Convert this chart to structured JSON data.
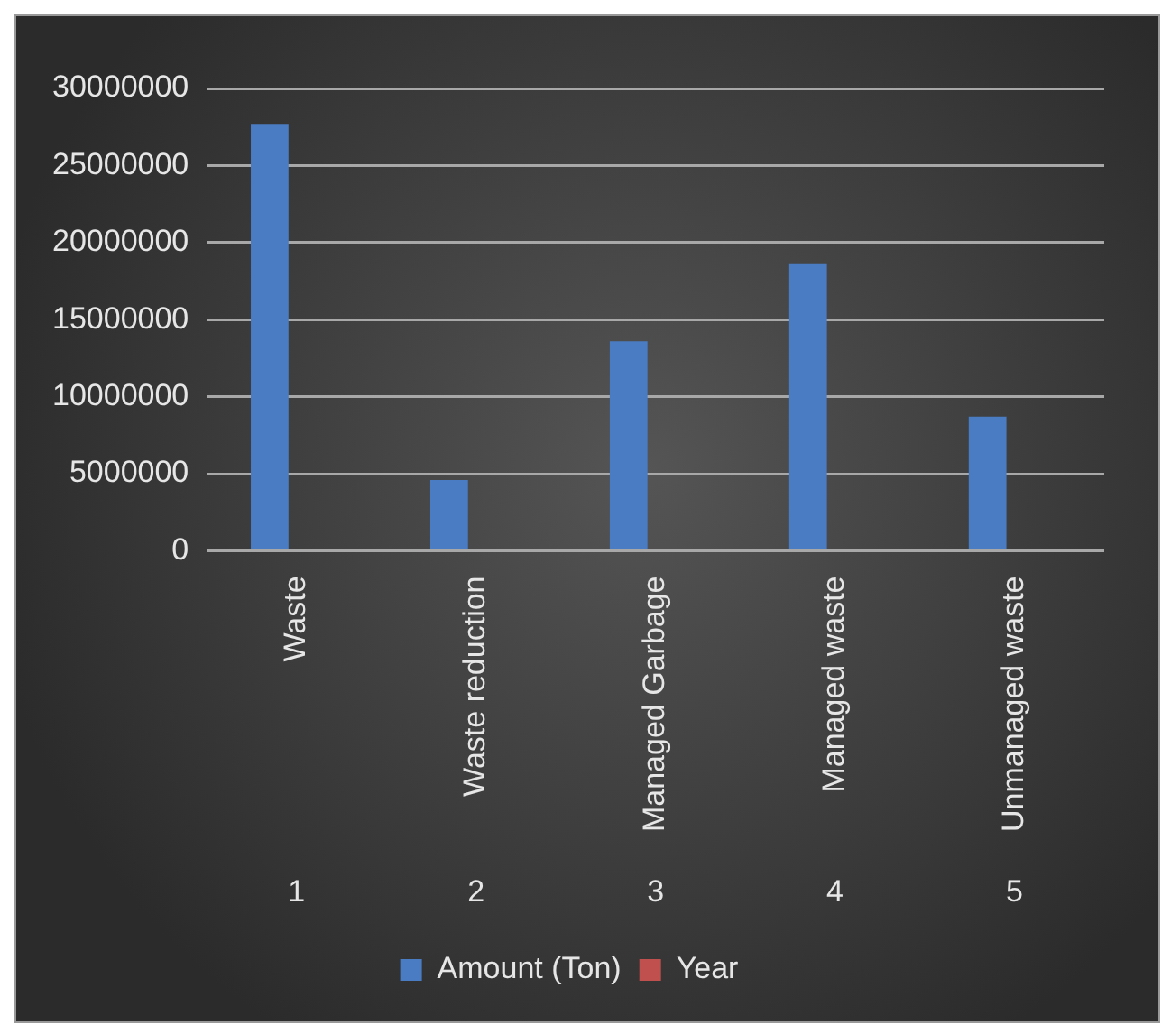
{
  "chart_data": {
    "type": "bar",
    "categories": [
      "Waste",
      "Waste reduction",
      "Managed Garbage",
      "Managed waste",
      "Unmanaged waste"
    ],
    "series": [
      {
        "name": "Amount (Ton)",
        "color": "#4a7cc4",
        "values": [
          27700000,
          4600000,
          13600000,
          18600000,
          8700000
        ]
      },
      {
        "name": "Year",
        "color": "#c0504d",
        "values": [
          0,
          0,
          0,
          0,
          0
        ]
      }
    ],
    "annotations": [
      "1",
      "2",
      "3",
      "4",
      "5"
    ],
    "ylim": [
      0,
      30000000
    ],
    "yticks": [
      0,
      5000000,
      10000000,
      15000000,
      20000000,
      25000000,
      30000000
    ],
    "grid": "y",
    "legend": "bottom"
  }
}
